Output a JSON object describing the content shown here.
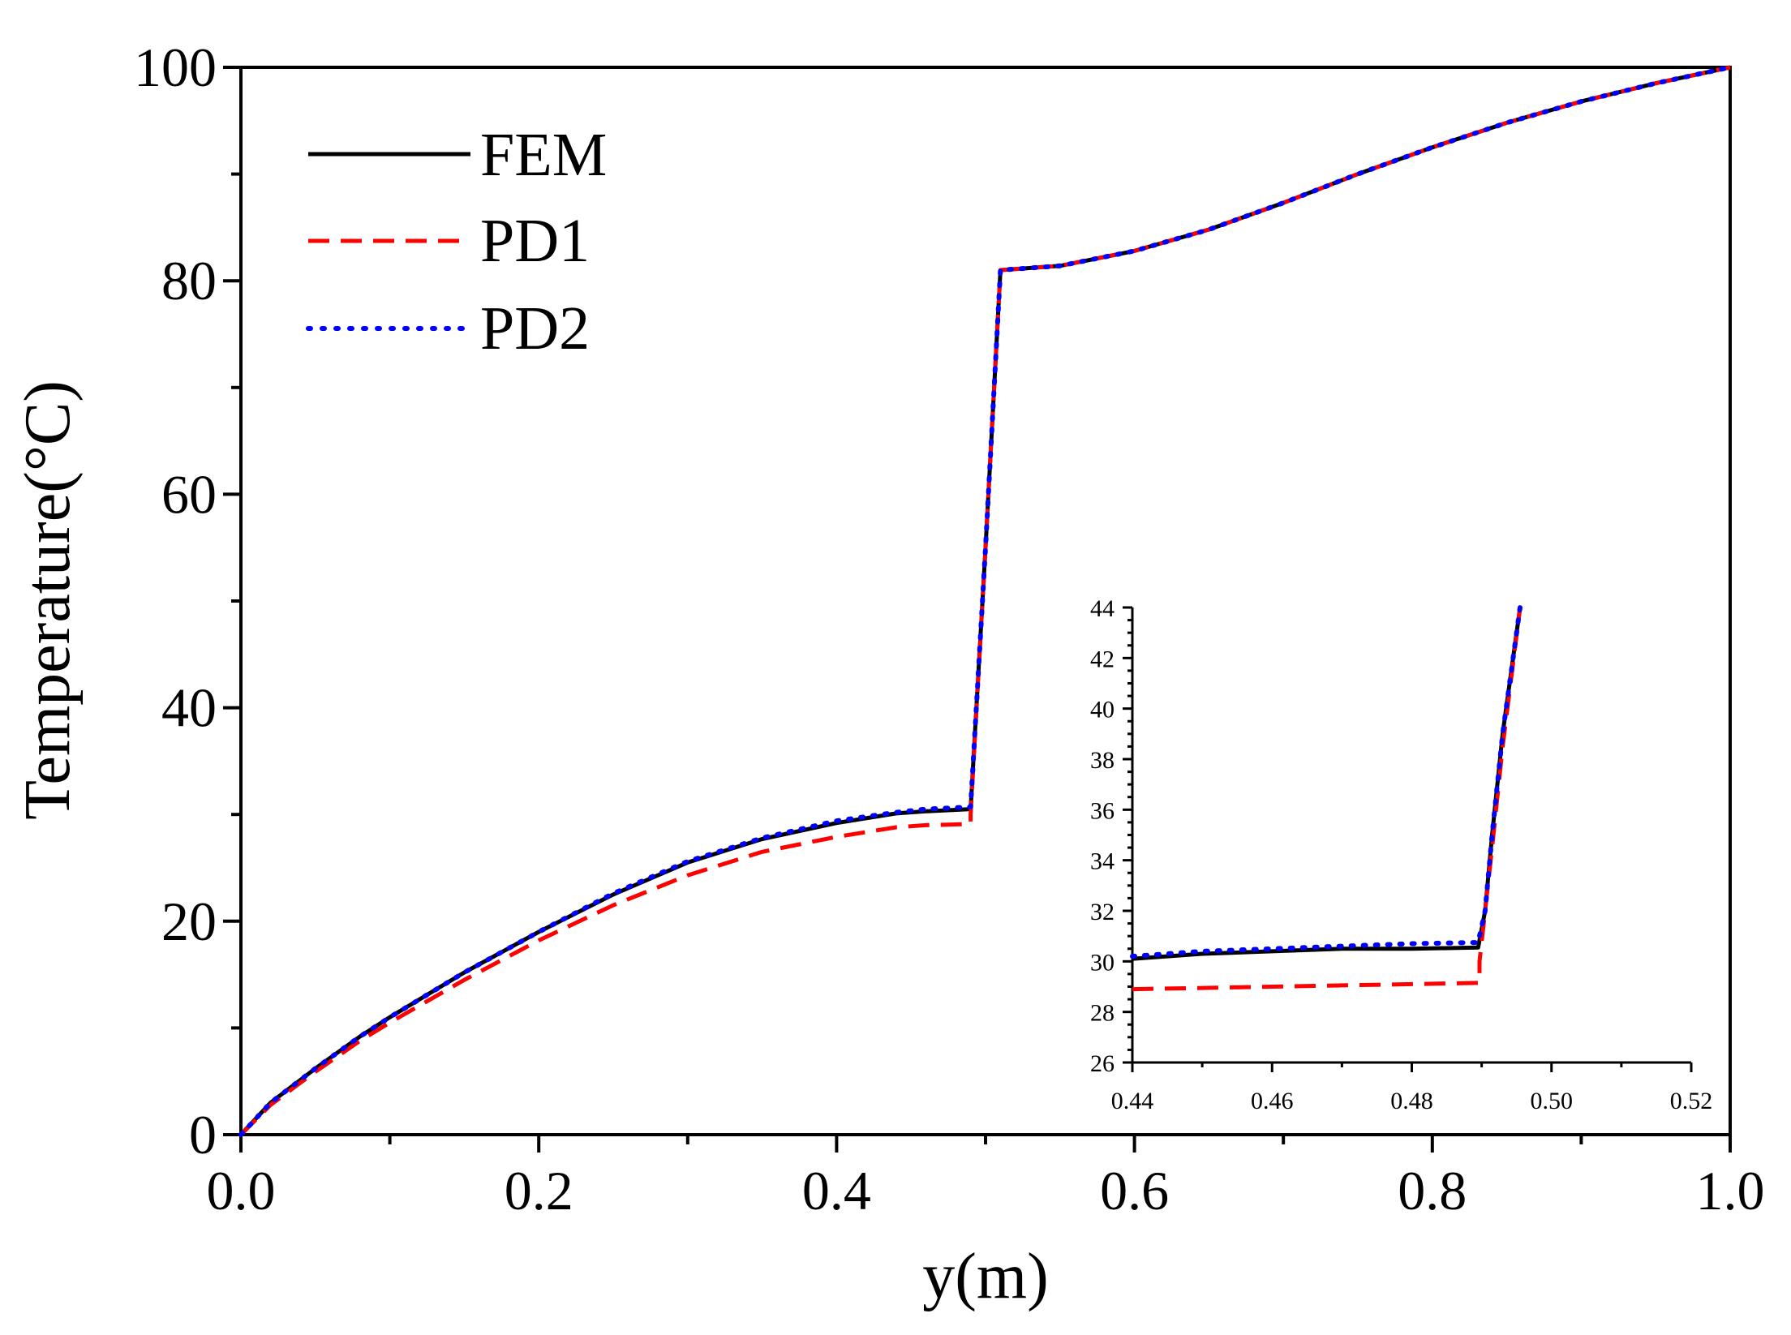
{
  "chart_data": [
    {
      "type": "line",
      "id": "main",
      "title": "",
      "xlabel": "y(m)",
      "ylabel": "Temperature(°C)",
      "xlim": [
        0.0,
        1.0
      ],
      "ylim": [
        0,
        100
      ],
      "xticks": [
        0.0,
        0.2,
        0.4,
        0.6,
        0.8,
        1.0
      ],
      "xtick_labels": [
        "0.0",
        "0.2",
        "0.4",
        "0.6",
        "0.8",
        "1.0"
      ],
      "yticks": [
        0,
        20,
        40,
        60,
        80,
        100
      ],
      "ytick_labels": [
        "0",
        "20",
        "40",
        "60",
        "80",
        "100"
      ],
      "legend_position": "top-left",
      "series": [
        {
          "name": "FEM",
          "color": "#000000",
          "style": "solid",
          "x": [
            0.0,
            0.02,
            0.05,
            0.08,
            0.1,
            0.15,
            0.2,
            0.25,
            0.3,
            0.35,
            0.4,
            0.44,
            0.46,
            0.49,
            0.49,
            0.5,
            0.51,
            0.55,
            0.6,
            0.65,
            0.7,
            0.75,
            0.8,
            0.85,
            0.9,
            0.95,
            1.0
          ],
          "y": [
            0.0,
            3.0,
            6.2,
            9.2,
            11.0,
            15.2,
            19.0,
            22.5,
            25.5,
            27.7,
            29.2,
            30.1,
            30.3,
            30.5,
            30.5,
            55.0,
            81.0,
            81.4,
            82.8,
            84.8,
            87.3,
            90.0,
            92.5,
            94.8,
            96.8,
            98.5,
            100.0
          ]
        },
        {
          "name": "PD1",
          "color": "#ff0000",
          "style": "dashed",
          "x": [
            0.0,
            0.02,
            0.05,
            0.08,
            0.1,
            0.15,
            0.2,
            0.25,
            0.3,
            0.35,
            0.4,
            0.44,
            0.46,
            0.49,
            0.49,
            0.5,
            0.51,
            0.55,
            0.6,
            0.65,
            0.7,
            0.75,
            0.8,
            0.85,
            0.9,
            0.95,
            1.0
          ],
          "y": [
            0.0,
            2.8,
            5.9,
            8.8,
            10.5,
            14.5,
            18.2,
            21.5,
            24.3,
            26.5,
            27.9,
            28.8,
            29.0,
            29.1,
            30.0,
            55.0,
            81.0,
            81.4,
            82.8,
            84.8,
            87.3,
            90.0,
            92.5,
            94.8,
            96.8,
            98.5,
            100.0
          ]
        },
        {
          "name": "PD2",
          "color": "#0000ff",
          "style": "dotted",
          "x": [
            0.0,
            0.02,
            0.05,
            0.08,
            0.1,
            0.15,
            0.2,
            0.25,
            0.3,
            0.35,
            0.4,
            0.44,
            0.46,
            0.49,
            0.49,
            0.5,
            0.51,
            0.55,
            0.6,
            0.65,
            0.7,
            0.75,
            0.8,
            0.85,
            0.9,
            0.95,
            1.0
          ],
          "y": [
            0.0,
            3.0,
            6.2,
            9.2,
            11.0,
            15.2,
            19.0,
            22.6,
            25.6,
            27.8,
            29.4,
            30.2,
            30.5,
            30.7,
            30.7,
            55.0,
            81.0,
            81.4,
            82.8,
            84.8,
            87.3,
            90.0,
            92.5,
            94.8,
            96.8,
            98.5,
            100.0
          ]
        }
      ]
    },
    {
      "type": "line",
      "id": "inset",
      "title": "",
      "xlabel": "",
      "ylabel": "",
      "xlim": [
        0.44,
        0.52
      ],
      "ylim": [
        26,
        44
      ],
      "xticks": [
        0.44,
        0.46,
        0.48,
        0.5,
        0.52
      ],
      "xtick_labels": [
        "0.44",
        "0.46",
        "0.48",
        "0.50",
        "0.52"
      ],
      "yticks": [
        26,
        28,
        30,
        32,
        34,
        36,
        38,
        40,
        42,
        44
      ],
      "ytick_labels": [
        "26",
        "28",
        "30",
        "32",
        "34",
        "36",
        "38",
        "40",
        "42",
        "44"
      ],
      "series": [
        {
          "name": "FEM",
          "color": "#000000",
          "style": "solid",
          "x": [
            0.44,
            0.45,
            0.46,
            0.47,
            0.48,
            0.4895,
            0.4905,
            0.4915,
            0.493,
            0.4955
          ],
          "y": [
            30.1,
            30.3,
            30.4,
            30.5,
            30.5,
            30.55,
            32.0,
            35.0,
            39.0,
            44.0
          ]
        },
        {
          "name": "PD1",
          "color": "#ff0000",
          "style": "dashed",
          "x": [
            0.44,
            0.45,
            0.46,
            0.47,
            0.48,
            0.4897,
            0.4897,
            0.4915,
            0.493,
            0.4955
          ],
          "y": [
            28.9,
            28.95,
            29.0,
            29.05,
            29.1,
            29.15,
            30.0,
            34.5,
            38.5,
            44.0
          ]
        },
        {
          "name": "PD2",
          "color": "#0000ff",
          "style": "dotted",
          "x": [
            0.44,
            0.45,
            0.46,
            0.47,
            0.48,
            0.4895,
            0.4905,
            0.4915,
            0.493,
            0.4955
          ],
          "y": [
            30.2,
            30.4,
            30.5,
            30.6,
            30.7,
            30.75,
            32.0,
            35.0,
            39.0,
            44.0
          ]
        }
      ]
    }
  ]
}
